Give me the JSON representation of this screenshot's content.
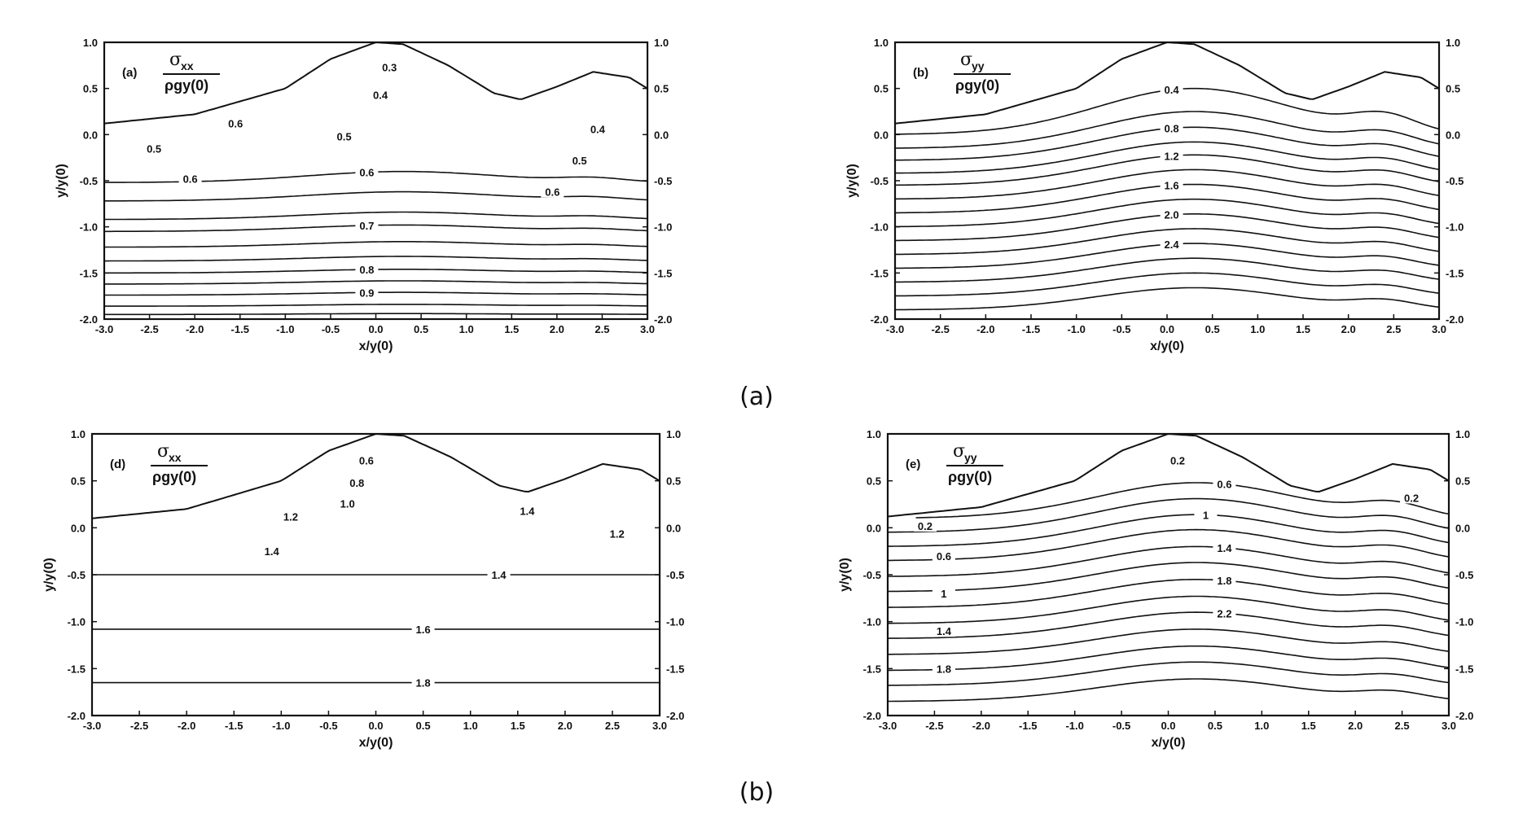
{
  "figure": {
    "group_captions": [
      "(a)",
      "(b)"
    ]
  },
  "chart_data": [
    {
      "type": "contour",
      "panel_label": "(a)",
      "symbol": "σ",
      "subscript": "xx",
      "denominator": "ρgy(0)",
      "xlabel": "x/y(0)",
      "ylabel": "y/y(0)",
      "xlim": [
        -3.0,
        3.0
      ],
      "ylim": [
        -2.0,
        1.0
      ],
      "xticks": [
        "-3.0",
        "-2.5",
        "-2.0",
        "-1.5",
        "-1.0",
        "-0.5",
        "0.0",
        "0.5",
        "1.0",
        "1.5",
        "2.0",
        "2.5",
        "3.0"
      ],
      "yticks": [
        "1.0",
        "0.5",
        "0.0",
        "-0.5",
        "-1.0",
        "-1.5",
        "-2.0"
      ],
      "surface": [
        [
          -3.0,
          0.12
        ],
        [
          -2.0,
          0.22
        ],
        [
          -1.0,
          0.5
        ],
        [
          -0.5,
          0.82
        ],
        [
          0.0,
          1.0
        ],
        [
          0.3,
          0.98
        ],
        [
          0.8,
          0.75
        ],
        [
          1.3,
          0.45
        ],
        [
          1.6,
          0.38
        ],
        [
          2.0,
          0.52
        ],
        [
          2.4,
          0.68
        ],
        [
          2.8,
          0.62
        ],
        [
          3.0,
          0.5
        ]
      ],
      "contours": [
        {
          "base": -0.52,
          "amp": 0.12,
          "label": "0.6",
          "label_x": -0.1
        },
        {
          "base": -0.72,
          "amp": 0.1,
          "label": "",
          "label_x": 0
        },
        {
          "base": -0.92,
          "amp": 0.08,
          "label": "",
          "label_x": 0
        },
        {
          "base": -1.05,
          "amp": 0.07,
          "label": "0.7",
          "label_x": -0.1
        },
        {
          "base": -1.22,
          "amp": 0.06,
          "label": "",
          "label_x": 0
        },
        {
          "base": -1.37,
          "amp": 0.05,
          "label": "",
          "label_x": 0
        },
        {
          "base": -1.5,
          "amp": 0.04,
          "label": "0.8",
          "label_x": -0.1
        },
        {
          "base": -1.62,
          "amp": 0.035,
          "label": "",
          "label_x": 0
        },
        {
          "base": -1.74,
          "amp": 0.03,
          "label": "0.9",
          "label_x": -0.1
        },
        {
          "base": -1.86,
          "amp": 0.02,
          "label": "",
          "label_x": 0
        },
        {
          "base": -1.95,
          "amp": 0.01,
          "label": "",
          "label_x": 0
        }
      ],
      "extra_labels": [
        {
          "text": "0.3",
          "x": 0.15,
          "y": 0.73
        },
        {
          "text": "0.4",
          "x": 0.05,
          "y": 0.43
        },
        {
          "text": "0.6",
          "x": -1.55,
          "y": 0.12
        },
        {
          "text": "0.5",
          "x": -0.35,
          "y": -0.02
        },
        {
          "text": "0.5",
          "x": -2.45,
          "y": -0.15
        },
        {
          "text": "0.6",
          "x": -2.05,
          "y": -0.48
        },
        {
          "text": "0.4",
          "x": 2.45,
          "y": 0.06
        },
        {
          "text": "0.5",
          "x": 2.25,
          "y": -0.28
        },
        {
          "text": "0.6",
          "x": 1.95,
          "y": -0.62
        }
      ]
    },
    {
      "type": "contour",
      "panel_label": "(b)",
      "symbol": "σ",
      "subscript": "yy",
      "denominator": "ρgy(0)",
      "xlabel": "x/y(0)",
      "ylabel": "y/y(0)",
      "xlim": [
        -3.0,
        3.0
      ],
      "ylim": [
        -2.0,
        1.0
      ],
      "xticks": [
        "-3.0",
        "-2.5",
        "-2.0",
        "-1.5",
        "-1.0",
        "-0.5",
        "0.0",
        "0.5",
        "1.0",
        "1.5",
        "2.0",
        "2.5",
        "3.0"
      ],
      "yticks": [
        "1.0",
        "0.5",
        "0.0",
        "-0.5",
        "-1.0",
        "-1.5",
        "-2.0"
      ],
      "surface": [
        [
          -3.0,
          0.12
        ],
        [
          -2.0,
          0.22
        ],
        [
          -1.0,
          0.5
        ],
        [
          -0.5,
          0.82
        ],
        [
          0.0,
          1.0
        ],
        [
          0.3,
          0.98
        ],
        [
          0.8,
          0.75
        ],
        [
          1.3,
          0.45
        ],
        [
          1.6,
          0.38
        ],
        [
          2.0,
          0.52
        ],
        [
          2.4,
          0.68
        ],
        [
          2.8,
          0.62
        ],
        [
          3.0,
          0.5
        ]
      ],
      "contours": [
        {
          "base": 0.0,
          "amp": 0.5,
          "label": "0.4",
          "label_x": 0.05
        },
        {
          "base": -0.15,
          "amp": 0.4,
          "label": "",
          "label_x": 0
        },
        {
          "base": -0.28,
          "amp": 0.36,
          "label": "0.8",
          "label_x": 0.05
        },
        {
          "base": -0.42,
          "amp": 0.34,
          "label": "",
          "label_x": 0
        },
        {
          "base": -0.55,
          "amp": 0.33,
          "label": "1.2",
          "label_x": 0.05
        },
        {
          "base": -0.7,
          "amp": 0.32,
          "label": "",
          "label_x": 0
        },
        {
          "base": -0.85,
          "amp": 0.31,
          "label": "1.6",
          "label_x": 0.05
        },
        {
          "base": -1.0,
          "amp": 0.3,
          "label": "",
          "label_x": 0
        },
        {
          "base": -1.15,
          "amp": 0.29,
          "label": "2.0",
          "label_x": 0.05
        },
        {
          "base": -1.3,
          "amp": 0.28,
          "label": "",
          "label_x": 0
        },
        {
          "base": -1.45,
          "amp": 0.27,
          "label": "2.4",
          "label_x": 0.05
        },
        {
          "base": -1.6,
          "amp": 0.26,
          "label": "",
          "label_x": 0
        },
        {
          "base": -1.75,
          "amp": 0.25,
          "label": "",
          "label_x": 0
        },
        {
          "base": -1.9,
          "amp": 0.24,
          "label": "",
          "label_x": 0
        }
      ],
      "extra_labels": []
    },
    {
      "type": "contour",
      "panel_label": "(d)",
      "symbol": "σ",
      "subscript": "xx",
      "denominator": "ρgy(0)",
      "xlabel": "x/y(0)",
      "ylabel": "y/y(0)",
      "xlim": [
        -3.0,
        3.0
      ],
      "ylim": [
        -2.0,
        1.0
      ],
      "xticks": [
        "-3.0",
        "-2.5",
        "-2.0",
        "-1.5",
        "-1.0",
        "-0.5",
        "0.0",
        "0.5",
        "1.0",
        "1.5",
        "2.0",
        "2.5",
        "3.0"
      ],
      "yticks": [
        "1.0",
        "0.5",
        "0.0",
        "-0.5",
        "-1.0",
        "-1.5",
        "-2.0"
      ],
      "surface": [
        [
          -3.0,
          0.1
        ],
        [
          -2.0,
          0.2
        ],
        [
          -1.0,
          0.5
        ],
        [
          -0.5,
          0.82
        ],
        [
          0.0,
          1.0
        ],
        [
          0.3,
          0.98
        ],
        [
          0.8,
          0.75
        ],
        [
          1.3,
          0.45
        ],
        [
          1.6,
          0.38
        ],
        [
          2.0,
          0.52
        ],
        [
          2.4,
          0.68
        ],
        [
          2.8,
          0.62
        ],
        [
          3.0,
          0.5
        ]
      ],
      "contours": [
        {
          "base": -0.5,
          "amp": 0.0,
          "label": "1.4",
          "label_x": 1.3
        },
        {
          "base": -1.08,
          "amp": 0.0,
          "label": "1.6",
          "label_x": 0.5
        },
        {
          "base": -1.65,
          "amp": 0.0,
          "label": "1.8",
          "label_x": 0.5
        }
      ],
      "extra_labels": [
        {
          "text": "0.6",
          "x": -0.1,
          "y": 0.72
        },
        {
          "text": "0.8",
          "x": -0.2,
          "y": 0.48
        },
        {
          "text": "1.0",
          "x": -0.3,
          "y": 0.26
        },
        {
          "text": "1.2",
          "x": -0.9,
          "y": 0.12
        },
        {
          "text": "1.4",
          "x": -1.1,
          "y": -0.25
        },
        {
          "text": "1.4",
          "x": 1.6,
          "y": 0.18
        },
        {
          "text": "1.2",
          "x": 2.55,
          "y": -0.06
        }
      ]
    },
    {
      "type": "contour",
      "panel_label": "(e)",
      "symbol": "σ",
      "subscript": "yy",
      "denominator": "ρgy(0)",
      "xlabel": "x/y(0)",
      "ylabel": "y/y(0)",
      "xlim": [
        -3.0,
        3.0
      ],
      "ylim": [
        -2.0,
        1.0
      ],
      "xticks": [
        "-3.0",
        "-2.5",
        "-2.0",
        "-1.5",
        "-1.0",
        "-0.5",
        "0.0",
        "0.5",
        "1.0",
        "1.5",
        "2.0",
        "2.5",
        "3.0"
      ],
      "yticks": [
        "1.0",
        "0.5",
        "0.0",
        "-0.5",
        "-1.0",
        "-1.5",
        "-2.0"
      ],
      "surface": [
        [
          -3.0,
          0.12
        ],
        [
          -2.0,
          0.22
        ],
        [
          -1.0,
          0.5
        ],
        [
          -0.5,
          0.82
        ],
        [
          0.0,
          1.0
        ],
        [
          0.3,
          0.98
        ],
        [
          0.8,
          0.75
        ],
        [
          1.3,
          0.45
        ],
        [
          1.6,
          0.38
        ],
        [
          2.0,
          0.52
        ],
        [
          2.4,
          0.68
        ],
        [
          2.8,
          0.62
        ],
        [
          3.0,
          0.5
        ]
      ],
      "contours": [
        {
          "base": 0.1,
          "amp": 0.38,
          "label": "0.6",
          "label_x": 0.6
        },
        {
          "base": -0.05,
          "amp": 0.36,
          "label": "",
          "label_x": 0
        },
        {
          "base": -0.2,
          "amp": 0.34,
          "label": "1",
          "label_x": 0.4
        },
        {
          "base": -0.35,
          "amp": 0.33,
          "label": "",
          "label_x": 0
        },
        {
          "base": -0.52,
          "amp": 0.32,
          "label": "1.4",
          "label_x": 0.6
        },
        {
          "base": -0.68,
          "amp": 0.31,
          "label": "",
          "label_x": 0
        },
        {
          "base": -0.85,
          "amp": 0.3,
          "label": "1.8",
          "label_x": 0.6
        },
        {
          "base": -1.02,
          "amp": 0.29,
          "label": "",
          "label_x": 0
        },
        {
          "base": -1.18,
          "amp": 0.28,
          "label": "2.2",
          "label_x": 0.6
        },
        {
          "base": -1.35,
          "amp": 0.27,
          "label": "",
          "label_x": 0
        },
        {
          "base": -1.52,
          "amp": 0.26,
          "label": "",
          "label_x": 0
        },
        {
          "base": -1.68,
          "amp": 0.25,
          "label": "",
          "label_x": 0
        },
        {
          "base": -1.85,
          "amp": 0.24,
          "label": "",
          "label_x": 0
        }
      ],
      "extra_labels": [
        {
          "text": "0.2",
          "x": 0.1,
          "y": 0.72
        },
        {
          "text": "0.2",
          "x": 2.6,
          "y": 0.32
        },
        {
          "text": "0.2",
          "x": -2.6,
          "y": 0.02
        },
        {
          "text": "0.6",
          "x": -2.4,
          "y": -0.3
        },
        {
          "text": "1",
          "x": -2.4,
          "y": -0.7
        },
        {
          "text": "1.4",
          "x": -2.4,
          "y": -1.1
        },
        {
          "text": "1.8",
          "x": -2.4,
          "y": -1.5
        }
      ]
    }
  ]
}
